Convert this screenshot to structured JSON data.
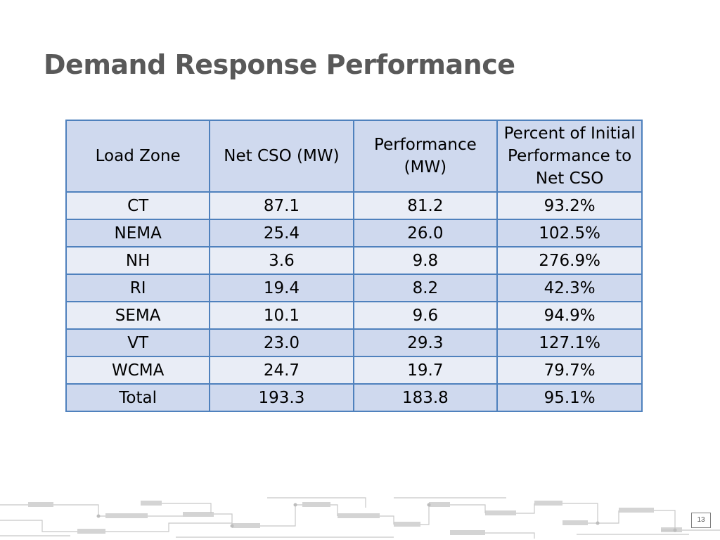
{
  "slide": {
    "title": "Demand Response Performance",
    "page_number": "13"
  },
  "table": {
    "headers": [
      "Load Zone",
      "Net CSO (MW)",
      "Performance (MW)",
      "Percent  of Initial Performance to Net CSO"
    ],
    "rows": [
      [
        "CT",
        "87.1",
        "81.2",
        "93.2%"
      ],
      [
        "NEMA",
        "25.4",
        "26.0",
        "102.5%"
      ],
      [
        "NH",
        "3.6",
        "9.8",
        "276.9%"
      ],
      [
        "RI",
        "19.4",
        "8.2",
        "42.3%"
      ],
      [
        "SEMA",
        "10.1",
        "9.6",
        "94.9%"
      ],
      [
        "VT",
        "23.0",
        "29.3",
        "127.1%"
      ],
      [
        "WCMA",
        "24.7",
        "19.7",
        "79.7%"
      ],
      [
        "Total",
        "193.3",
        "183.8",
        "95.1%"
      ]
    ]
  },
  "colors": {
    "table_border": "#4f81bd",
    "header_fill": "#cfd9ee",
    "row_light": "#e9edf6",
    "row_dark": "#cfd9ee",
    "title_text": "#595959"
  }
}
